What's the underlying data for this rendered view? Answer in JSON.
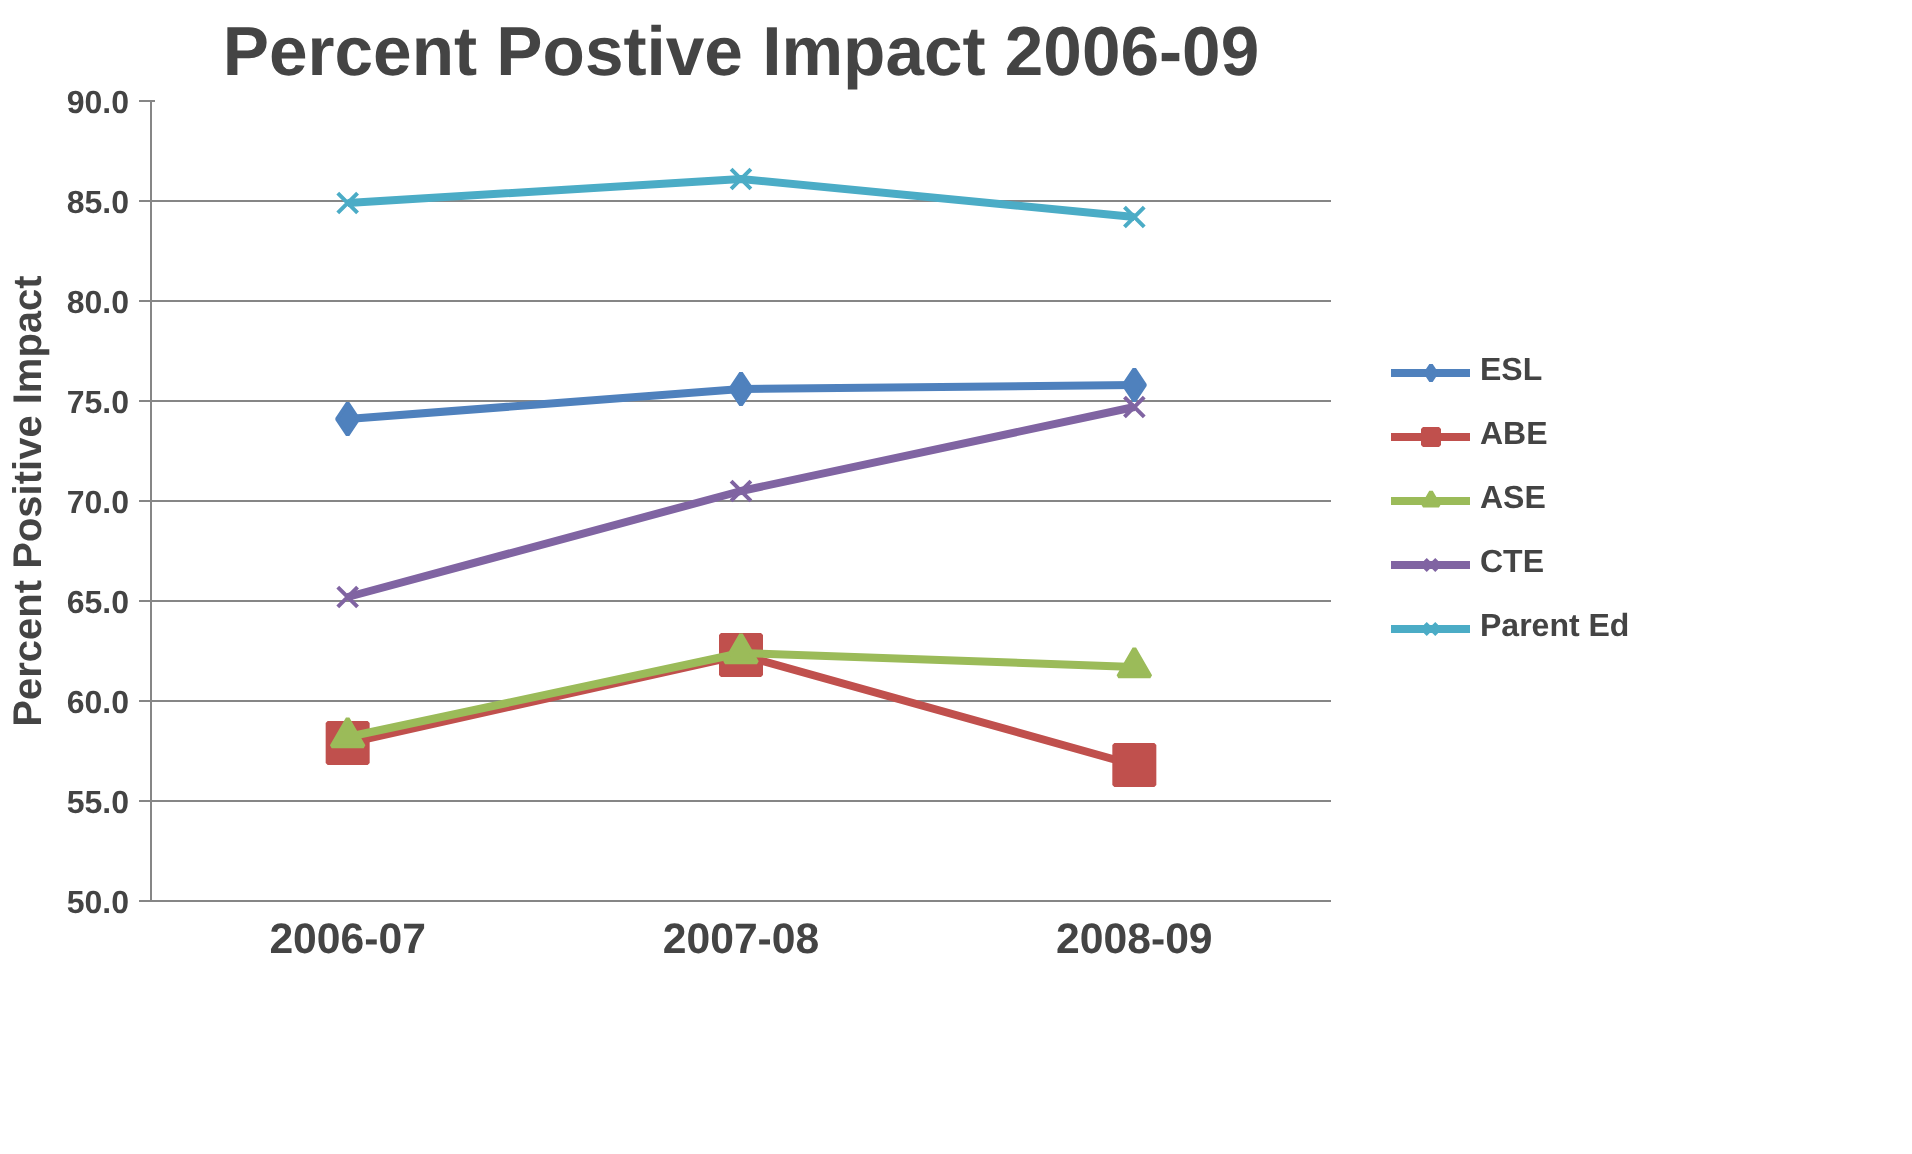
{
  "chart_data": {
    "type": "line",
    "title": "Percent Postive Impact 2006-09",
    "ylabel": "Percent Positive Impact",
    "categories": [
      "2006-07",
      "2007-08",
      "2008-09"
    ],
    "series": [
      {
        "name": "ESL",
        "color": "#4f81bd",
        "marker": "diamond",
        "values": [
          74.1,
          75.6,
          75.8
        ]
      },
      {
        "name": "ABE",
        "color": "#c0504d",
        "marker": "square",
        "values": [
          57.9,
          62.3,
          56.8
        ]
      },
      {
        "name": "ASE",
        "color": "#9bbb59",
        "marker": "triangle",
        "values": [
          58.2,
          62.4,
          61.7
        ]
      },
      {
        "name": "CTE",
        "color": "#8064a2",
        "marker": "cross",
        "values": [
          65.2,
          70.5,
          74.7
        ]
      },
      {
        "name": "Parent Ed",
        "color": "#4bacc6",
        "marker": "cross",
        "values": [
          84.9,
          86.1,
          84.2
        ]
      }
    ],
    "ylim": [
      50,
      90
    ],
    "yticks": [
      {
        "value": 50,
        "label": "50.0"
      },
      {
        "value": 55,
        "label": "55.0"
      },
      {
        "value": 60,
        "label": "60.0"
      },
      {
        "value": 65,
        "label": "65.0"
      },
      {
        "value": 70,
        "label": "70.0"
      },
      {
        "value": 75,
        "label": "75.0"
      },
      {
        "value": 80,
        "label": "80.0"
      },
      {
        "value": 85,
        "label": "85.0"
      },
      {
        "value": 90,
        "label": "90.0"
      }
    ],
    "grid": "y",
    "legend": "right",
    "line_style": "solid"
  }
}
